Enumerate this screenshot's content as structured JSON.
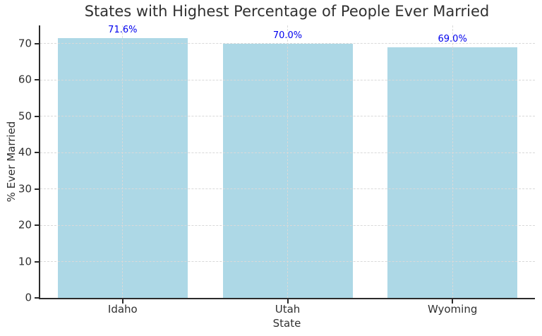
{
  "chart_data": {
    "type": "bar",
    "title": "States with Highest Percentage of People Ever Married",
    "xlabel": "State",
    "ylabel": "% Ever Married",
    "categories": [
      "Idaho",
      "Utah",
      "Wyoming"
    ],
    "values": [
      71.6,
      70.0,
      69.0
    ],
    "value_labels": [
      "71.6%",
      "70.0%",
      "69.0%"
    ],
    "ylim": [
      0,
      75
    ],
    "yticks": [
      0,
      10,
      20,
      30,
      40,
      50,
      60,
      70
    ],
    "grid": true,
    "grid_style": "dashed",
    "grid_axis": "both",
    "legend": "none",
    "colors": {
      "bar_fill": "#ADD8E6",
      "value_label": "#0000EE",
      "grid_line": "#D9D9D9",
      "axis_spine": "#2B2B2B",
      "text": "#303030",
      "background": "#FFFFFF"
    }
  }
}
